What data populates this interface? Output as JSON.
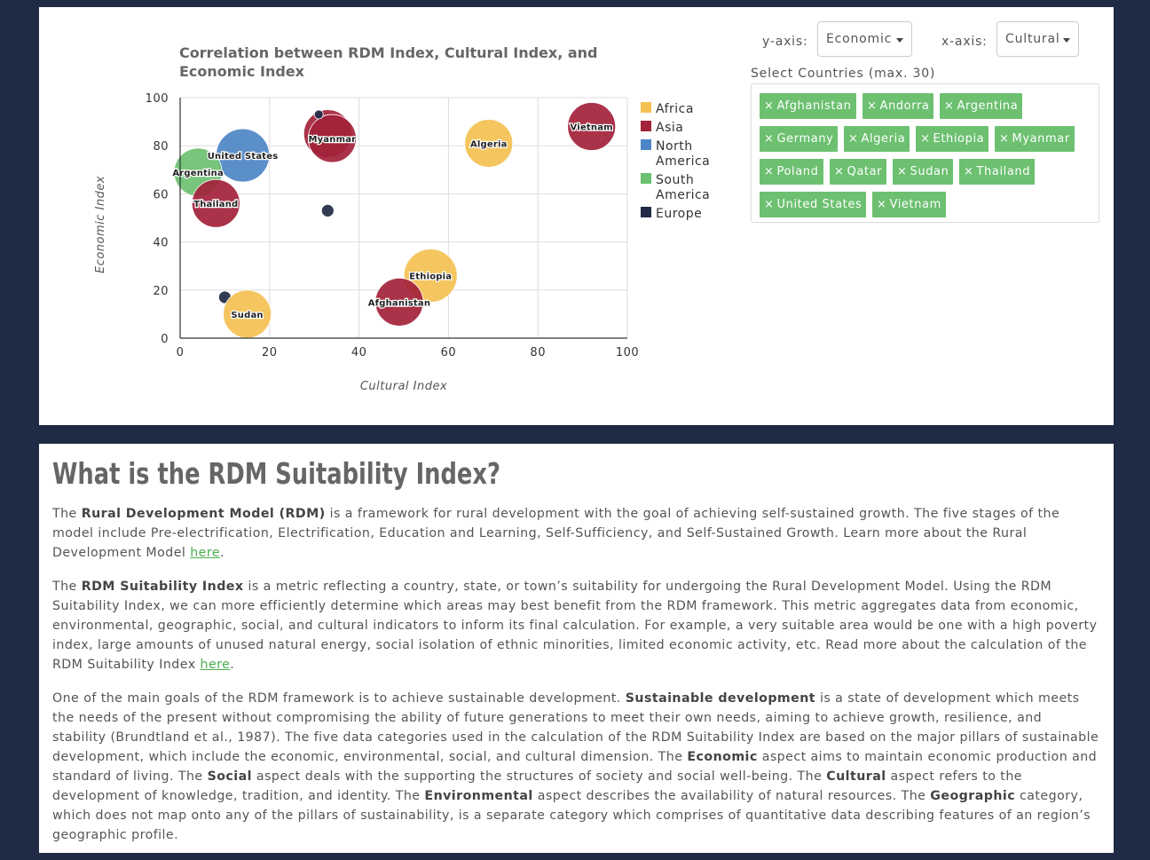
{
  "controls": {
    "yaxis_label": "y-axis:",
    "yaxis_value": "Economic",
    "xaxis_label": "x-axis:",
    "xaxis_value": "Cultural",
    "countries_label": "Select Countries (max. 30)",
    "selected_countries": [
      "Afghanistan",
      "Andorra",
      "Argentina",
      "Germany",
      "Algeria",
      "Ethiopia",
      "Myanmar",
      "Poland",
      "Qatar",
      "Sudan",
      "Thailand",
      "United States",
      "Vietnam"
    ],
    "tag_remove_glyph": "×"
  },
  "chart_data": {
    "type": "scatter",
    "title": "Correlation between RDM Index, Cultural Index, and Economic Index",
    "title_lines": [
      "Correlation between RDM Index, Cultural Index, and",
      "Economic Index"
    ],
    "xlabel": "Cultural Index",
    "ylabel": "Economic Index",
    "xlim": [
      0,
      100
    ],
    "ylim": [
      0,
      100
    ],
    "xticks": [
      0,
      20,
      40,
      60,
      80,
      100
    ],
    "yticks": [
      0,
      20,
      40,
      60,
      80,
      100
    ],
    "grid": true,
    "legend_position": "right",
    "legend": [
      {
        "name": "Africa",
        "color": "#f4c152"
      },
      {
        "name": "Asia",
        "color": "#a3223a"
      },
      {
        "name": "North America",
        "color": "#4d86c6"
      },
      {
        "name": "South America",
        "color": "#6cc070"
      },
      {
        "name": "Europe",
        "color": "#1f2a44"
      }
    ],
    "points": [
      {
        "label": "Vietnam",
        "region": "Asia",
        "x": 92,
        "y": 88,
        "r": "large"
      },
      {
        "label": "Algeria",
        "region": "Africa",
        "x": 69,
        "y": 81,
        "r": "large"
      },
      {
        "label": "",
        "region": "Asia",
        "x": 33,
        "y": 85,
        "r": "large"
      },
      {
        "label": "Myanmar",
        "region": "Asia",
        "x": 34,
        "y": 83,
        "r": "large"
      },
      {
        "label": "",
        "region": "Europe",
        "x": 31,
        "y": 93,
        "r": "tiny"
      },
      {
        "label": "United States",
        "region": "North America",
        "x": 14,
        "y": 76,
        "r": "xlarge"
      },
      {
        "label": "Argentina",
        "region": "South America",
        "x": 4,
        "y": 69,
        "r": "large"
      },
      {
        "label": "Thailand",
        "region": "Asia",
        "x": 8,
        "y": 56,
        "r": "large"
      },
      {
        "label": "",
        "region": "Europe",
        "x": 33,
        "y": 53,
        "r": "small"
      },
      {
        "label": "Ethiopia",
        "region": "Africa",
        "x": 56,
        "y": 26,
        "r": "xlarge"
      },
      {
        "label": "Afghanistan",
        "region": "Asia",
        "x": 49,
        "y": 15,
        "r": "large"
      },
      {
        "label": "",
        "region": "Europe",
        "x": 10,
        "y": 17,
        "r": "small"
      },
      {
        "label": "Sudan",
        "region": "Africa",
        "x": 15,
        "y": 10,
        "r": "large"
      }
    ]
  },
  "article": {
    "heading": "What is the RDM Suitability Index?",
    "link_text": "here",
    "p1": [
      "The ",
      "Rural Development Model (RDM)",
      " is a framework for rural development with the goal of achieving self-sustained growth. The five stages of the model include Pre-electrification, Electrification, Education and Learning, Self-Sufficiency, and Self-Sustained Growth. Learn more about the Rural Development Model ",
      "."
    ],
    "p2": [
      "The ",
      "RDM Suitability Index",
      " is a metric reflecting a country, state, or town’s suitability for undergoing the Rural Development Model. Using the RDM Suitability Index, we can more efficiently determine which areas may best benefit from the RDM framework. This metric aggregates data from economic, environmental, geographic, social, and cultural indicators to inform its final calculation. For example, a very suitable area would be one with a high poverty index, large amounts of unused natural energy, social isolation of ethnic minorities, limited economic activity, etc. Read more about the calculation of the RDM Suitability Index ",
      "."
    ],
    "p3": [
      "One of the main goals of the RDM framework is to achieve sustainable development. ",
      "Sustainable development",
      " is a state of development which meets the needs of the present without compromising the ability of future generations to meet their own needs, aiming to achieve growth, resilience, and stability (Brundtland et al., 1987). The five data categories used in the calculation of the RDM Suitability Index are based on the major pillars of sustainable development, which include the economic, environmental, social, and cultural dimension. The ",
      "Economic",
      " aspect aims to maintain economic production and standard of living. The ",
      "Social",
      " aspect deals with the supporting the structures of society and social well-being. The ",
      "Cultural",
      " aspect refers to the development of knowledge, tradition, and identity. The ",
      "Environmental",
      " aspect describes the availability of natural resources. The ",
      "Geographic",
      " category, which does not map onto any of the pillars of sustainability, is a separate category which comprises of quantitative data describing features of an region’s geographic profile."
    ]
  }
}
